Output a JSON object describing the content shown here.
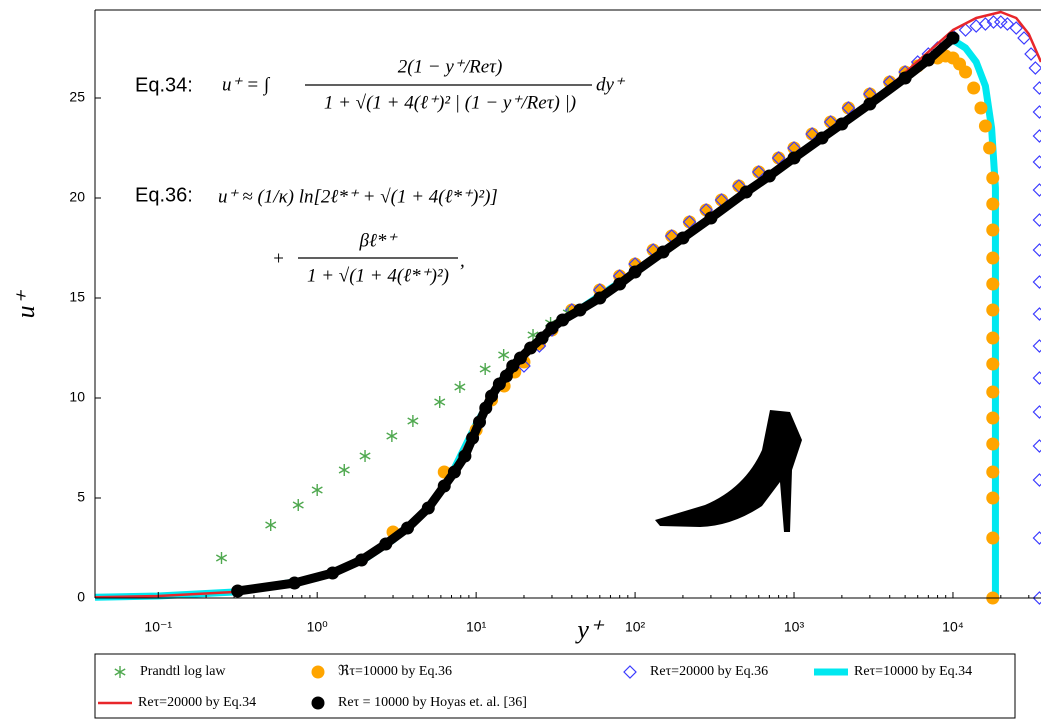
{
  "chart_data": {
    "type": "scatter",
    "x_label": "y⁺",
    "y_label": "u⁺",
    "log_x": true,
    "xlim": [
      0.04,
      35800
    ],
    "ylim": [
      0,
      29.4
    ],
    "xticks": [
      {
        "value": 0.1,
        "label": "10⁻¹"
      },
      {
        "value": 1,
        "label": "10⁰"
      },
      {
        "value": 10,
        "label": "10¹"
      },
      {
        "value": 100,
        "label": "10²"
      },
      {
        "value": 1000,
        "label": "10³"
      },
      {
        "value": 10000,
        "label": "10⁴"
      }
    ],
    "yticks": [
      0,
      5,
      10,
      15,
      20,
      25
    ],
    "grid": false,
    "legend": "bottom",
    "annotations": {
      "eq34": {
        "label": "Eq.34:",
        "lhs": "u⁺ = ∫",
        "numerator": "2(1 − y⁺/Reτ)",
        "denominator": "1 + √(1 + 4(ℓ⁺)² | (1 − y⁺/Reτ) |)",
        "suffix": "dy⁺"
      },
      "eq36": {
        "label": "Eq.36:",
        "line1": "u⁺ ≈ (1/κ) ln[2ℓ*⁺ + √(1 + 4(ℓ*⁺)²)]",
        "prefix": "+",
        "numerator": "βℓ*⁺",
        "denominator": "1 + √(1 + 4(ℓ*⁺)²)",
        "suffix": ","
      }
    },
    "series": [
      {
        "name": "Prandtl log law",
        "color": "#4fa84f",
        "marker": "star",
        "line": false,
        "x": [
          0.25,
          0.51,
          0.76,
          1,
          1.48,
          2,
          2.95,
          4,
          5.9,
          7.9,
          11.4,
          14.9,
          22.8,
          29.4,
          38
        ],
        "values": [
          2.0,
          3.65,
          4.65,
          5.4,
          6.4,
          7.1,
          8.1,
          8.85,
          9.8,
          10.55,
          11.45,
          12.15,
          13.15,
          13.75,
          14.25
        ]
      },
      {
        "name": "ℜτ=10000 by Eq.36",
        "color": "#ffa500",
        "marker": "circle",
        "line": false,
        "x": [
          3,
          6.3,
          10,
          12.5,
          15,
          17.5,
          20,
          25,
          30,
          40,
          60,
          80,
          100,
          130,
          170,
          220,
          280,
          350,
          450,
          600,
          800,
          1000,
          1300,
          1700,
          2200,
          3000,
          4000,
          5000,
          6000,
          7000,
          8000,
          9000,
          10000,
          11000,
          12000,
          13500,
          15000,
          16000,
          17000,
          17800,
          17800,
          17800,
          17800,
          17800,
          17800,
          17800,
          17800,
          17800,
          17800,
          17800,
          17800,
          17800,
          17800,
          17800
        ],
        "values": [
          3.3,
          6.3,
          8.4,
          9.9,
          10.6,
          11.3,
          11.8,
          12.7,
          13.4,
          14.4,
          15.4,
          16.1,
          16.7,
          17.4,
          18.1,
          18.8,
          19.4,
          19.9,
          20.6,
          21.3,
          22.0,
          22.5,
          23.2,
          23.8,
          24.5,
          25.2,
          25.8,
          26.3,
          26.6,
          26.9,
          27.0,
          27.1,
          27.0,
          26.7,
          26.3,
          25.5,
          24.5,
          23.6,
          22.5,
          21.0,
          19.7,
          18.4,
          17.0,
          15.7,
          14.4,
          13.0,
          11.7,
          10.3,
          9.0,
          7.7,
          6.3,
          5.0,
          3.0,
          0
        ]
      },
      {
        "name": "Reτ=20000 by Eq.36",
        "color": "#3b3bff",
        "marker": "diamond",
        "line": false,
        "x": [
          20,
          25,
          30,
          40,
          60,
          80,
          100,
          130,
          170,
          220,
          280,
          350,
          450,
          600,
          800,
          1000,
          1300,
          1700,
          2200,
          3000,
          4000,
          5000,
          6000,
          7000,
          8000,
          9000,
          10000,
          12000,
          14000,
          16000,
          18000,
          20000,
          22000,
          25000,
          28000,
          31000,
          33000,
          35000,
          35000,
          35000,
          35000,
          35000,
          35000,
          35000,
          35000,
          35000,
          35000,
          35000,
          35000,
          35000,
          35000,
          35000,
          35000
        ],
        "values": [
          11.6,
          12.6,
          13.4,
          14.4,
          15.4,
          16.1,
          16.7,
          17.4,
          18.1,
          18.8,
          19.4,
          19.9,
          20.6,
          21.3,
          22.0,
          22.5,
          23.2,
          23.8,
          24.5,
          25.2,
          25.8,
          26.3,
          26.8,
          27.2,
          27.5,
          27.8,
          28.1,
          28.4,
          28.6,
          28.7,
          28.8,
          28.8,
          28.7,
          28.5,
          28.0,
          27.2,
          26.5,
          25.5,
          24.3,
          23.1,
          21.8,
          20.4,
          18.9,
          17.4,
          15.8,
          14.2,
          12.6,
          11.0,
          9.3,
          7.6,
          5.9,
          3.0,
          0
        ]
      },
      {
        "name": "Reτ=10000 by Eq.34",
        "color": "#00e8f0",
        "marker": null,
        "line": true,
        "line_width": 7,
        "x": [
          0.04,
          0.1,
          0.3,
          1,
          2,
          3,
          5,
          7,
          10,
          15,
          20,
          30,
          50,
          100,
          300,
          1000,
          3000,
          10000,
          12000,
          14000,
          16000,
          17500,
          18500,
          18500
        ],
        "values": [
          0.04,
          0.1,
          0.3,
          1,
          1.95,
          2.9,
          4.5,
          6.2,
          8.7,
          11.1,
          12.2,
          13.5,
          14.7,
          16.3,
          19.0,
          22.0,
          24.7,
          27.9,
          27.5,
          26.8,
          25.6,
          23.5,
          20.5,
          0
        ]
      },
      {
        "name": "Reτ=20000 by Eq.34",
        "color": "#e8262a",
        "marker": null,
        "line": true,
        "line_width": 2.5,
        "x": [
          0.04,
          0.1,
          0.3,
          1,
          2,
          3,
          5,
          7,
          10,
          15,
          20,
          30,
          50,
          100,
          300,
          1000,
          3000,
          10000,
          14000,
          20000,
          25000,
          30000,
          35800
        ],
        "values": [
          0.04,
          0.1,
          0.3,
          1,
          1.95,
          2.9,
          4.5,
          6.2,
          8.7,
          11.1,
          12.2,
          13.5,
          14.7,
          16.3,
          19.0,
          22.0,
          24.7,
          28.4,
          29.0,
          29.3,
          29.0,
          28.2,
          26.8
        ]
      },
      {
        "name": "Reτ = 10000 by Hoyas et. al. [36]",
        "color": "#000000",
        "marker": "circle",
        "line": true,
        "line_width": 9,
        "x": [
          0.316,
          0.72,
          1.25,
          1.9,
          2.7,
          3.7,
          5,
          6.3,
          7.3,
          8.5,
          9.5,
          10.5,
          11.5,
          12.5,
          14,
          15.5,
          17,
          19,
          22,
          26,
          30,
          35,
          45,
          60,
          80,
          100,
          150,
          200,
          300,
          500,
          700,
          1000,
          1500,
          2000,
          3000,
          5000,
          7000,
          10000
        ],
        "values": [
          0.35,
          0.75,
          1.25,
          1.9,
          2.7,
          3.5,
          4.5,
          5.6,
          6.3,
          7.1,
          8.0,
          8.8,
          9.5,
          10.1,
          10.7,
          11.1,
          11.6,
          12.0,
          12.5,
          13.0,
          13.5,
          13.9,
          14.4,
          15.0,
          15.7,
          16.3,
          17.3,
          18.0,
          19.0,
          20.3,
          21.1,
          22.0,
          23.0,
          23.7,
          24.7,
          26.0,
          26.9,
          28.0
        ]
      }
    ]
  }
}
